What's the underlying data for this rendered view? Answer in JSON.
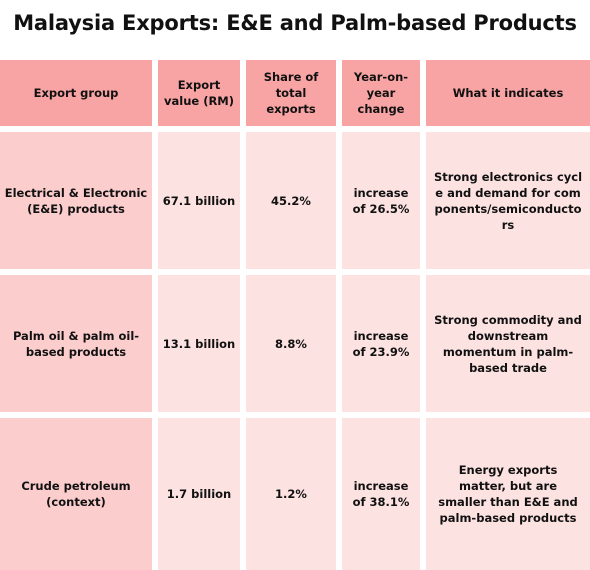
{
  "title": "Malaysia Exports: E&E and Palm-based Products",
  "colors": {
    "header_bg": "#f9a4a4",
    "first_column_bg": "#fbcdcd",
    "body_bg": "#fde2e2"
  },
  "table": {
    "headers": [
      "Export group",
      "Export value (RM)",
      "Share of total exports",
      "Year-on-year change",
      "What it indicates"
    ],
    "rows": [
      {
        "group": "Electrical & Electronic (E&E) products",
        "value": "67.1 billion",
        "share": "45.2%",
        "change": "increase of 26.5%",
        "indicates": "Strong electronics cycle and demand for components/semiconductors"
      },
      {
        "group": "Palm oil & palm oil-based products",
        "value": "13.1 billion",
        "share": "8.8%",
        "change": "increase of 23.9%",
        "indicates": "Strong commodity and downstream momentum in palm-based trade"
      },
      {
        "group": "Crude petroleum (context)",
        "value": "1.7 billion",
        "share": "1.2%",
        "change": "increase of 38.1%",
        "indicates": "Energy exports matter, but are smaller than E&E and palm-based products"
      }
    ]
  }
}
